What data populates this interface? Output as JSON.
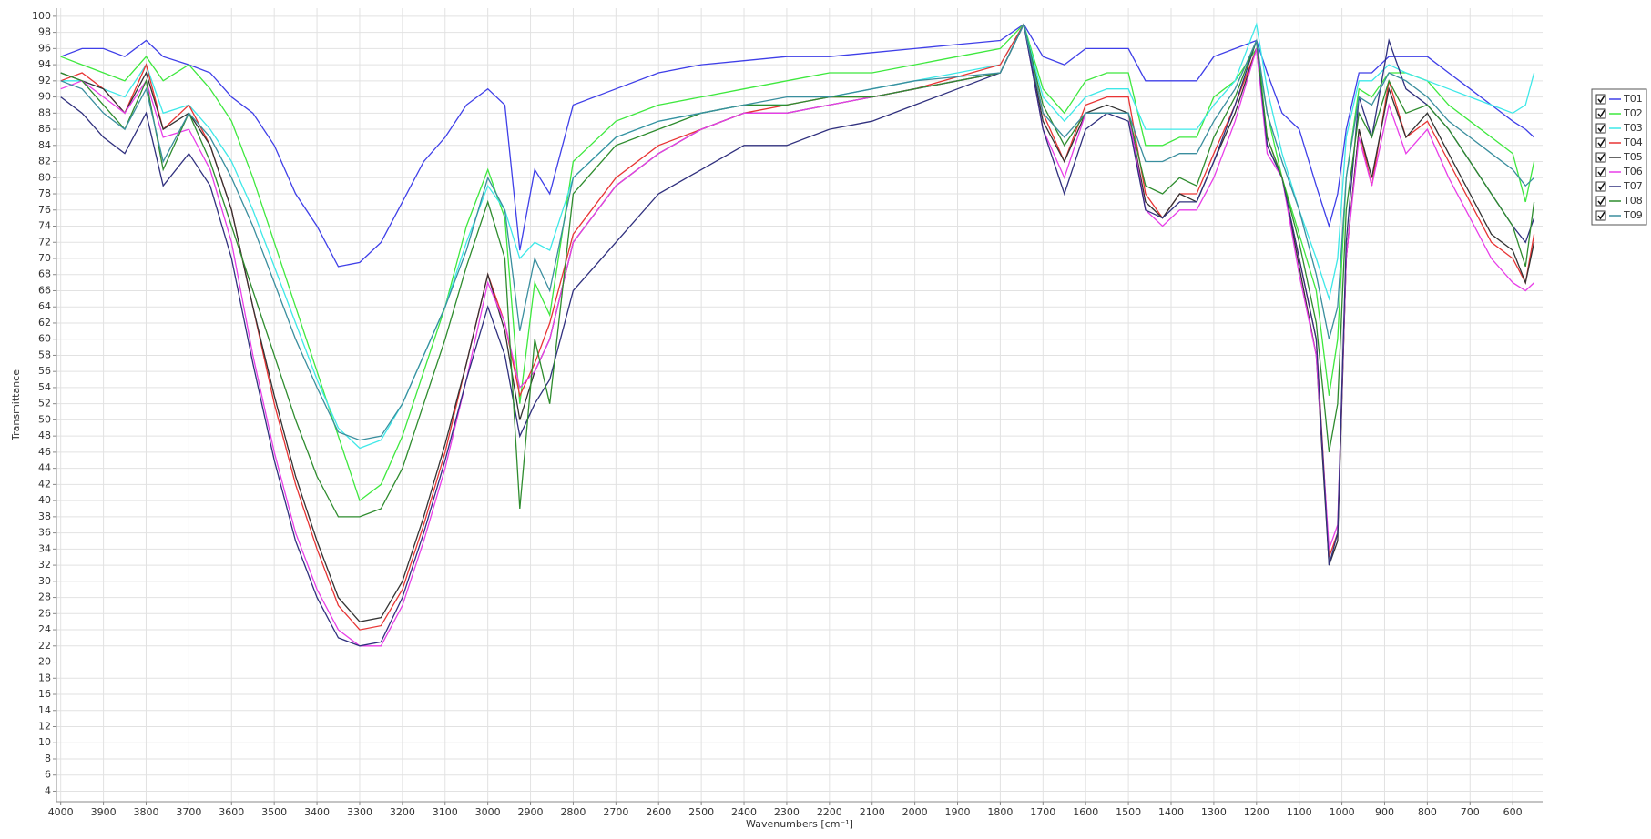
{
  "chart_data": {
    "type": "line",
    "xlabel": "Wavenumbers [cm⁻¹]",
    "ylabel": "Transmittance",
    "xlim": [
      4010,
      530
    ],
    "ylim": [
      2.7,
      101
    ],
    "grid": true,
    "legend": "right",
    "xticks": [
      4000,
      3900,
      3800,
      3700,
      3600,
      3500,
      3400,
      3300,
      3200,
      3100,
      3000,
      2900,
      2800,
      2700,
      2600,
      2500,
      2400,
      2300,
      2200,
      2100,
      2000,
      1900,
      1800,
      1700,
      1600,
      1500,
      1400,
      1300,
      1200,
      1100,
      1000,
      900,
      800,
      700,
      600
    ],
    "yticks": [
      4,
      6,
      8,
      10,
      12,
      14,
      16,
      18,
      20,
      22,
      24,
      26,
      28,
      30,
      32,
      34,
      36,
      38,
      40,
      42,
      44,
      46,
      48,
      50,
      52,
      54,
      56,
      58,
      60,
      62,
      64,
      66,
      68,
      70,
      72,
      74,
      76,
      78,
      80,
      82,
      84,
      86,
      88,
      90,
      92,
      94,
      96,
      98,
      100
    ],
    "x": [
      4000,
      3950,
      3900,
      3850,
      3800,
      3760,
      3700,
      3650,
      3600,
      3550,
      3500,
      3450,
      3400,
      3350,
      3300,
      3250,
      3200,
      3150,
      3100,
      3050,
      3000,
      2960,
      2925,
      2890,
      2855,
      2800,
      2700,
      2600,
      2500,
      2400,
      2300,
      2200,
      2100,
      2000,
      1900,
      1800,
      1745,
      1700,
      1650,
      1600,
      1550,
      1500,
      1460,
      1420,
      1380,
      1340,
      1300,
      1250,
      1200,
      1175,
      1140,
      1100,
      1060,
      1030,
      1010,
      990,
      960,
      930,
      890,
      850,
      800,
      750,
      700,
      650,
      600,
      570,
      550
    ],
    "series": [
      {
        "name": "T01",
        "color": "#3f3fe8",
        "values": [
          95,
          96,
          96,
          95,
          97,
          95,
          94,
          93,
          90,
          88,
          84,
          78,
          74,
          69,
          69.5,
          72,
          77,
          82,
          85,
          89,
          91,
          89,
          71,
          81,
          78,
          89,
          91,
          93,
          94,
          94.5,
          95,
          95,
          95.5,
          96,
          96.5,
          97,
          99,
          95,
          94,
          96,
          96,
          96,
          92,
          92,
          92,
          92,
          95,
          96,
          97,
          93,
          88,
          86,
          79,
          74,
          78,
          86,
          93,
          93,
          95,
          95,
          95,
          93,
          91,
          89,
          87,
          86,
          85
        ]
      },
      {
        "name": "T02",
        "color": "#3ee83e",
        "values": [
          95,
          94,
          93,
          92,
          95,
          92,
          94,
          91,
          87,
          80,
          72,
          64,
          56,
          48,
          40,
          42,
          48,
          56,
          64,
          74,
          81,
          75,
          52,
          67,
          63,
          82,
          87,
          89,
          90,
          91,
          92,
          93,
          93,
          94,
          95,
          96,
          99,
          91,
          88,
          92,
          93,
          93,
          84,
          84,
          85,
          85,
          90,
          92,
          96,
          88,
          80,
          73,
          66,
          53,
          60,
          80,
          91,
          90,
          93,
          93,
          92,
          89,
          87,
          85,
          83,
          77,
          82
        ]
      },
      {
        "name": "T03",
        "color": "#3ee8e8",
        "values": [
          92,
          92,
          91,
          90,
          94,
          88,
          89,
          86,
          82,
          76,
          69,
          62,
          55,
          49,
          46.5,
          47.5,
          52,
          58,
          64,
          72,
          79,
          76,
          70,
          72,
          71,
          80,
          85,
          87,
          88,
          89,
          89,
          90,
          91,
          92,
          93,
          94,
          99,
          90,
          87,
          90,
          91,
          91,
          86,
          86,
          86,
          86,
          89,
          92,
          99,
          91,
          83,
          76,
          70,
          65,
          70,
          85,
          92,
          92,
          94,
          93,
          92,
          91,
          90,
          89,
          88,
          89,
          93
        ]
      },
      {
        "name": "T04",
        "color": "#e83434",
        "values": [
          92,
          93,
          91,
          88,
          94,
          86,
          89,
          84,
          76,
          64,
          52,
          42,
          34,
          27,
          24,
          24.5,
          29,
          37,
          46,
          57,
          68,
          62,
          53,
          57,
          62,
          73,
          80,
          84,
          86,
          88,
          89,
          90,
          90,
          91,
          92.5,
          94,
          99,
          88,
          82,
          89,
          90,
          90,
          78,
          75,
          78,
          78,
          83,
          89,
          96,
          85,
          80,
          70,
          60,
          33,
          36,
          70,
          86,
          79,
          92,
          85,
          87,
          82,
          77,
          72,
          70,
          67,
          73
        ]
      },
      {
        "name": "T05",
        "color": "#333333",
        "values": [
          93,
          92,
          91,
          88,
          93,
          86,
          88,
          84,
          76,
          64,
          53,
          43,
          35,
          28,
          25,
          25.5,
          30,
          38,
          47,
          57,
          68,
          61,
          50,
          56,
          60,
          72,
          79,
          83,
          86,
          88,
          88,
          89,
          90,
          91,
          92,
          93,
          99,
          87,
          82,
          88,
          89,
          88,
          77,
          75,
          78,
          77,
          82,
          88,
          96,
          84,
          80,
          69,
          58,
          32,
          35,
          70,
          86,
          80,
          91,
          85,
          88,
          83,
          78,
          73,
          71,
          67,
          72
        ]
      },
      {
        "name": "T06",
        "color": "#e83ee8",
        "values": [
          91,
          92,
          90,
          88,
          92,
          85,
          86,
          81,
          72,
          58,
          46,
          36,
          29,
          24,
          22,
          22,
          27,
          35,
          44,
          55,
          67,
          62,
          54,
          56,
          60,
          72,
          79,
          83,
          86,
          88,
          88,
          89,
          90,
          91,
          92,
          93,
          99,
          86,
          80,
          88,
          88,
          88,
          76,
          74,
          76,
          76,
          80,
          87,
          96,
          83,
          80,
          68,
          58,
          34,
          37,
          70,
          85,
          79,
          89,
          83,
          86,
          80,
          75,
          70,
          67,
          66,
          67
        ]
      },
      {
        "name": "T07",
        "color": "#30307e",
        "values": [
          90,
          88,
          85,
          83,
          88,
          79,
          83,
          79,
          70,
          57,
          45,
          35,
          28,
          23,
          22,
          22.5,
          28,
          36,
          45,
          55,
          64,
          58,
          48,
          52,
          55,
          66,
          72,
          78,
          81,
          84,
          84,
          86,
          87,
          89,
          91,
          93,
          99,
          86,
          78,
          86,
          88,
          87,
          76,
          75,
          77,
          77,
          82,
          89,
          97,
          84,
          80,
          70,
          60,
          32,
          36,
          72,
          90,
          85,
          97,
          91,
          89,
          86,
          82,
          78,
          74,
          72,
          75
        ]
      },
      {
        "name": "T08",
        "color": "#2e8c2e",
        "values": [
          93,
          92,
          89,
          86,
          92,
          81,
          88,
          82,
          74,
          66,
          58,
          50,
          43,
          38,
          38,
          39,
          44,
          52,
          60,
          69,
          77,
          70,
          39,
          60,
          52,
          78,
          84,
          86,
          88,
          89,
          89,
          90,
          90,
          91,
          92,
          93,
          99,
          89,
          84,
          88,
          88,
          88,
          79,
          78,
          80,
          79,
          85,
          90,
          97,
          85,
          80,
          72,
          62,
          46,
          52,
          76,
          88,
          85,
          92,
          88,
          89,
          86,
          82,
          78,
          74,
          69,
          77
        ]
      },
      {
        "name": "T09",
        "color": "#3a8e9e",
        "values": [
          92,
          91,
          88,
          86,
          91,
          82,
          88,
          85,
          80,
          74,
          67,
          60,
          54,
          48.5,
          47.5,
          48,
          52,
          58,
          64,
          71,
          80,
          76,
          61,
          70,
          66,
          80,
          85,
          87,
          88,
          89,
          90,
          90,
          91,
          92,
          92.5,
          93,
          99,
          88,
          85,
          88,
          88,
          88,
          82,
          82,
          83,
          83,
          87,
          91,
          97,
          88,
          82,
          76,
          68,
          60,
          64,
          80,
          90,
          89,
          93,
          92,
          90,
          87,
          85,
          83,
          81,
          79,
          80
        ]
      }
    ]
  }
}
